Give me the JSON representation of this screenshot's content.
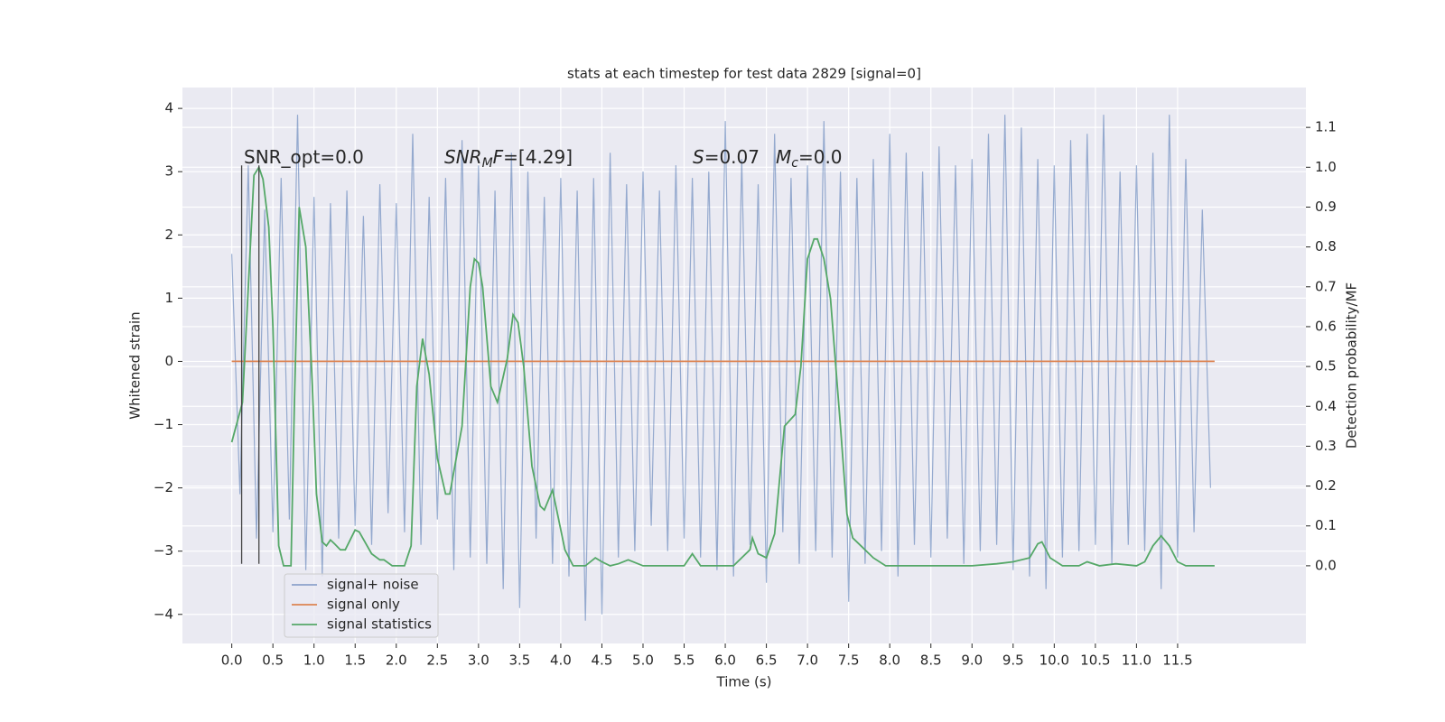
{
  "chart_data": {
    "type": "line",
    "title": "stats at each timestep for test data 2829 [signal=0]",
    "xlabel": "Time (s)",
    "ylabel": "Whitened strain",
    "y2label": "Detection probability/MF",
    "xlim": [
      -0.6,
      13.06
    ],
    "ylim": [
      -4.46,
      4.33
    ],
    "y2lim": [
      -0.195,
      1.2
    ],
    "grid": true,
    "legend": "lower left",
    "xticks": [
      {
        "value": 0,
        "label": "0.0"
      },
      0.5,
      {
        "value": 1,
        "label": "1.0"
      },
      1.5,
      {
        "value": 2,
        "label": "2.0"
      },
      2.5,
      {
        "value": 3,
        "label": "3.0"
      },
      3.5,
      {
        "value": 4,
        "label": "4.0"
      },
      4.5,
      {
        "value": 5,
        "label": "5.0"
      },
      5.5,
      {
        "value": 6,
        "label": "6.0"
      },
      6.5,
      {
        "value": 7,
        "label": "7.0"
      },
      7.5,
      {
        "value": 8,
        "label": "8.0"
      },
      8.5,
      {
        "value": 9,
        "label": "9.0"
      },
      9.5,
      {
        "value": 10,
        "label": "10.0"
      },
      10.5,
      {
        "value": 11,
        "label": "11.0"
      },
      11.5
    ],
    "yticks": [
      4,
      3,
      2,
      1,
      0,
      {
        "value": -1,
        "label": "−1"
      },
      {
        "value": -2,
        "label": "−2"
      },
      {
        "value": -3,
        "label": "−3"
      },
      {
        "value": -4,
        "label": "−4"
      }
    ],
    "y2ticks": [
      {
        "value": 0,
        "label": "0.0"
      },
      0.1,
      0.2,
      0.3,
      0.4,
      0.5,
      0.6,
      0.7,
      0.8,
      0.9,
      {
        "value": 1,
        "label": "1.0"
      },
      1.1
    ],
    "series": [
      {
        "name": "signal+ noise",
        "color": "#4c72b0",
        "x": [
          0,
          0.1,
          0.2,
          0.3,
          0.4,
          0.5,
          0.6,
          0.7,
          0.8,
          0.9,
          1,
          1.1,
          1.2,
          1.3,
          1.4,
          1.5,
          1.6,
          1.7,
          1.8,
          1.9,
          2,
          2.1,
          2.2,
          2.3,
          2.4,
          2.5,
          2.6,
          2.7,
          2.8,
          2.9,
          3,
          3.1,
          3.2,
          3.3,
          3.4,
          3.5,
          3.6,
          3.7,
          3.8,
          3.9,
          4,
          4.1,
          4.2,
          4.3,
          4.4,
          4.5,
          4.6,
          4.7,
          4.8,
          4.9,
          5,
          5.1,
          5.2,
          5.3,
          5.4,
          5.5,
          5.6,
          5.7,
          5.8,
          5.9,
          6,
          6.1,
          6.2,
          6.3,
          6.4,
          6.5,
          6.6,
          6.7,
          6.8,
          6.9,
          7,
          7.1,
          7.2,
          7.3,
          7.4,
          7.5,
          7.6,
          7.7,
          7.8,
          7.9,
          8,
          8.1,
          8.2,
          8.3,
          8.4,
          8.5,
          8.6,
          8.7,
          8.8,
          8.9,
          9,
          9.1,
          9.2,
          9.3,
          9.4,
          9.5,
          9.6,
          9.7,
          9.8,
          9.9,
          10,
          10.1,
          10.2,
          10.3,
          10.4,
          10.5,
          10.6,
          10.7,
          10.8,
          10.9,
          11,
          11.1,
          11.2,
          11.3,
          11.4,
          11.5,
          11.6,
          11.7,
          11.8,
          11.9
        ],
        "values": [
          1.7,
          -2.1,
          3.1,
          -2.8,
          2.4,
          -2.7,
          2.9,
          -2.5,
          3.9,
          -3.3,
          2.6,
          -3.4,
          2.5,
          -2.8,
          2.7,
          -2.6,
          2.3,
          -2.9,
          2.8,
          -2.4,
          2.5,
          -2.7,
          3.6,
          -2.9,
          2.6,
          -2.5,
          2.9,
          -3.3,
          3.5,
          -3.1,
          3.1,
          -3.2,
          2.7,
          -3.6,
          3.3,
          -3.9,
          3.0,
          -2.8,
          2.6,
          -3.2,
          2.9,
          -3.4,
          2.7,
          -4.1,
          2.9,
          -4.0,
          3.3,
          -3.1,
          2.8,
          -3.0,
          3.0,
          -2.6,
          2.7,
          -3.0,
          3.1,
          -2.8,
          2.9,
          -3.1,
          3.0,
          -3.3,
          3.8,
          -3.4,
          3.2,
          -2.9,
          2.8,
          -3.5,
          3.6,
          -2.7,
          2.9,
          -3.2,
          3.1,
          -3.0,
          3.8,
          -3.1,
          3.0,
          -3.8,
          2.9,
          -3.2,
          3.2,
          -3.0,
          3.6,
          -3.4,
          3.3,
          -2.9,
          3.0,
          -3.1,
          3.4,
          -2.8,
          3.1,
          -3.2,
          3.2,
          -3.0,
          3.6,
          -2.9,
          3.9,
          -3.3,
          3.7,
          -3.4,
          3.2,
          -3.6,
          3.1,
          -3.1,
          3.5,
          -3.0,
          3.6,
          -2.9,
          3.9,
          -3.2,
          3.0,
          -2.9,
          3.1,
          -3.0,
          3.3,
          -3.6,
          3.9,
          -3.1,
          3.2,
          -2.7,
          2.4,
          -2.0
        ]
      },
      {
        "name": "signal only",
        "color": "#dd8452",
        "x": [
          0,
          11.95
        ],
        "values": [
          0,
          0
        ]
      },
      {
        "name": "signal statistics",
        "color": "#55a868",
        "axis": "y2",
        "x": [
          0,
          0.13,
          0.27,
          0.33,
          0.38,
          0.45,
          0.5,
          0.57,
          0.63,
          0.72,
          0.76,
          0.82,
          0.9,
          0.98,
          1.03,
          1.1,
          1.15,
          1.2,
          1.25,
          1.32,
          1.38,
          1.5,
          1.55,
          1.7,
          1.8,
          1.85,
          1.95,
          2.1,
          2.18,
          2.25,
          2.32,
          2.4,
          2.5,
          2.6,
          2.65,
          2.8,
          2.9,
          2.95,
          3,
          3.05,
          3.15,
          3.23,
          3.35,
          3.42,
          3.48,
          3.55,
          3.65,
          3.75,
          3.8,
          3.9,
          3.95,
          4.05,
          4.15,
          4.3,
          4.42,
          4.5,
          4.6,
          4.7,
          4.82,
          5,
          5.5,
          5.6,
          5.7,
          6.1,
          6.3,
          6.33,
          6.4,
          6.5,
          6.6,
          6.72,
          6.85,
          6.92,
          7,
          7.08,
          7.12,
          7.2,
          7.28,
          7.4,
          7.48,
          7.55,
          7.65,
          7.8,
          7.95,
          9,
          9.3,
          9.5,
          9.7,
          9.8,
          9.85,
          9.95,
          10.1,
          10.3,
          10.4,
          10.55,
          10.75,
          11,
          11.1,
          11.2,
          11.3,
          11.4,
          11.5,
          11.6,
          11.95
        ],
        "values": [
          0.31,
          0.41,
          0.98,
          1.0,
          0.97,
          0.85,
          0.6,
          0.05,
          0.0,
          0.0,
          0.4,
          0.9,
          0.8,
          0.45,
          0.18,
          0.06,
          0.05,
          0.065,
          0.055,
          0.04,
          0.04,
          0.09,
          0.085,
          0.03,
          0.015,
          0.015,
          0.0,
          0.0,
          0.05,
          0.45,
          0.57,
          0.48,
          0.27,
          0.18,
          0.18,
          0.35,
          0.7,
          0.77,
          0.76,
          0.7,
          0.45,
          0.41,
          0.52,
          0.63,
          0.61,
          0.5,
          0.25,
          0.15,
          0.14,
          0.19,
          0.14,
          0.04,
          0.0,
          0.0,
          0.02,
          0.01,
          0.0,
          0.005,
          0.015,
          0.0,
          0.0,
          0.03,
          0.0,
          0.0,
          0.04,
          0.07,
          0.03,
          0.02,
          0.08,
          0.35,
          0.38,
          0.5,
          0.77,
          0.82,
          0.82,
          0.77,
          0.67,
          0.35,
          0.13,
          0.07,
          0.05,
          0.02,
          0.0,
          0.0,
          0.005,
          0.01,
          0.02,
          0.055,
          0.06,
          0.02,
          0.0,
          0.0,
          0.01,
          0.0,
          0.005,
          0.0,
          0.01,
          0.05,
          0.075,
          0.05,
          0.01,
          0.0,
          0.0
        ]
      }
    ],
    "vlines": [
      {
        "x": 0.12,
        "ymin": -3.2,
        "ymax": 3.1,
        "color": "#444444"
      },
      {
        "x": 0.33,
        "ymin": -3.2,
        "ymax": 3.1,
        "color": "#444444"
      }
    ],
    "annotations": [
      {
        "parts": [
          {
            "text": "SNR_opt=0.0"
          }
        ]
      },
      {
        "parts": [
          {
            "text": "SNR",
            "style": "italic"
          },
          {
            "text": "M",
            "style": "sub"
          },
          {
            "text": "F",
            "style": "italic"
          },
          {
            "text": "=[4.29]"
          }
        ]
      },
      {
        "parts": [
          {
            "text": "S",
            "style": "italic"
          },
          {
            "text": "=0.07"
          }
        ]
      },
      {
        "parts": [
          {
            "text": "M",
            "style": "italic"
          },
          {
            "text": "c",
            "style": "sub"
          },
          {
            "text": "=0.0"
          }
        ]
      }
    ]
  }
}
